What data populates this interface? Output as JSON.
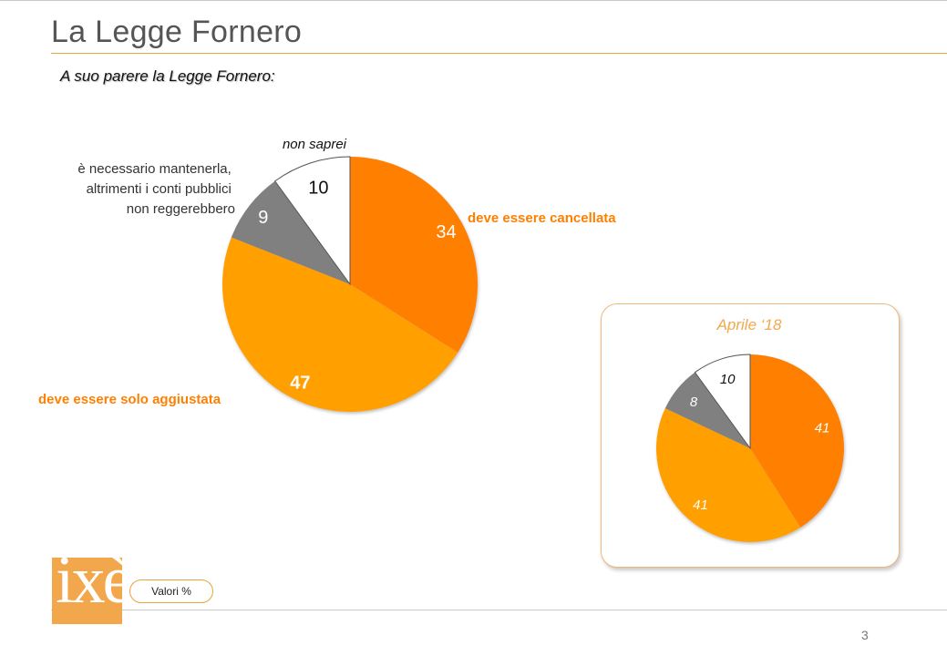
{
  "slide": {
    "title": "La Legge Fornero",
    "question": "A suo parere la Legge Fornero:",
    "footer_badge": "Valori %",
    "page_number": "3",
    "logo_text": "ixè"
  },
  "colors": {
    "cancellata": "#ff7f00",
    "aggiustata": "#ffa000",
    "mantenerla": "#808080",
    "non_saprei": "#ffffff",
    "accent": "#e8a33b"
  },
  "chart_data": [
    {
      "type": "pie",
      "title": "",
      "unit": "%",
      "labels": [
        "deve essere cancellata",
        "deve essere solo aggiustata",
        "è necessario mantenerla, altrimenti i conti pubblici non reggerebbero",
        "non saprei"
      ],
      "values": [
        34,
        47,
        9,
        10
      ]
    },
    {
      "type": "pie",
      "title": "Aprile ‘18",
      "unit": "%",
      "values": [
        41,
        41,
        8,
        10
      ]
    }
  ]
}
